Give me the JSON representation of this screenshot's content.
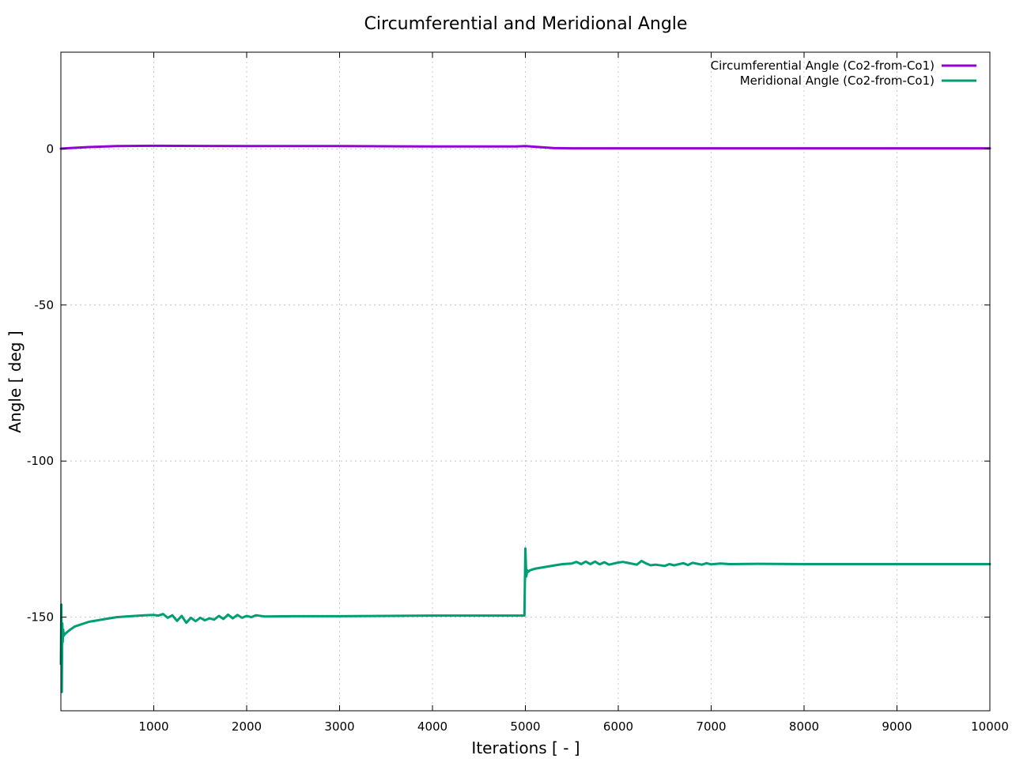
{
  "chart_data": {
    "type": "line",
    "title": "Circumferential and Meridional Angle",
    "xlabel": "Iterations [ - ]",
    "ylabel": "Angle [ deg ]",
    "xlim": [
      0,
      10000
    ],
    "ylim": [
      -180,
      31
    ],
    "xticks": [
      1000,
      2000,
      3000,
      4000,
      5000,
      6000,
      7000,
      8000,
      9000,
      10000
    ],
    "yticks": [
      0,
      -50,
      -100,
      -150
    ],
    "grid": true,
    "legend_position": "top-right",
    "series": [
      {
        "name": "Circumferential Angle (Co2-from-Co1)",
        "color": "#9400d3",
        "x": [
          0,
          100,
          300,
          600,
          1000,
          2000,
          3000,
          4000,
          4900,
          5000,
          5100,
          5300,
          5500,
          6000,
          7000,
          8000,
          9000,
          10000
        ],
        "y": [
          0.1,
          0.3,
          0.6,
          0.9,
          1.0,
          0.9,
          0.9,
          0.8,
          0.8,
          0.9,
          0.7,
          0.3,
          0.2,
          0.2,
          0.2,
          0.2,
          0.2,
          0.2
        ]
      },
      {
        "name": "Meridional Angle (Co2-from-Co1)",
        "color": "#009e73",
        "x": [
          0,
          5,
          10,
          15,
          20,
          25,
          30,
          40,
          60,
          80,
          100,
          150,
          200,
          300,
          400,
          500,
          600,
          700,
          800,
          900,
          1000,
          1050,
          1100,
          1150,
          1200,
          1250,
          1300,
          1350,
          1400,
          1450,
          1500,
          1550,
          1600,
          1650,
          1700,
          1750,
          1800,
          1850,
          1900,
          1950,
          2000,
          2050,
          2100,
          2200,
          2500,
          3000,
          3500,
          4000,
          4500,
          4990,
          5000,
          5010,
          5020,
          5030,
          5050,
          5100,
          5200,
          5300,
          5400,
          5500,
          5550,
          5600,
          5650,
          5700,
          5750,
          5800,
          5850,
          5900,
          6000,
          6050,
          6100,
          6200,
          6250,
          6300,
          6350,
          6400,
          6500,
          6550,
          6600,
          6700,
          6750,
          6800,
          6900,
          6950,
          7000,
          7100,
          7200,
          7500,
          8000,
          9000,
          10000
        ],
        "y": [
          -165,
          -146,
          -174,
          -152,
          -158,
          -154,
          -156,
          -155.5,
          -155,
          -154.5,
          -154,
          -153,
          -152.5,
          -151.5,
          -151,
          -150.5,
          -150,
          -149.8,
          -149.6,
          -149.4,
          -149.3,
          -149.5,
          -149.0,
          -150.2,
          -149.4,
          -151.2,
          -149.6,
          -151.8,
          -150.2,
          -151.3,
          -150.2,
          -151.0,
          -150.4,
          -150.8,
          -149.6,
          -150.6,
          -149.2,
          -150.4,
          -149.3,
          -150.2,
          -149.6,
          -150.0,
          -149.4,
          -149.8,
          -149.7,
          -149.7,
          -149.6,
          -149.5,
          -149.5,
          -149.5,
          -128,
          -137,
          -135,
          -135.5,
          -135,
          -134.5,
          -134,
          -133.5,
          -133,
          -132.8,
          -132.3,
          -133.0,
          -132.2,
          -133.0,
          -132.2,
          -133.1,
          -132.4,
          -133.2,
          -132.5,
          -132.3,
          -132.6,
          -133.2,
          -132.0,
          -132.8,
          -133.4,
          -133.2,
          -133.6,
          -133.0,
          -133.4,
          -132.7,
          -133.3,
          -132.6,
          -133.2,
          -132.7,
          -133.1,
          -132.8,
          -133.0,
          -132.9,
          -133.0,
          -133.0,
          -133.0
        ]
      }
    ]
  }
}
